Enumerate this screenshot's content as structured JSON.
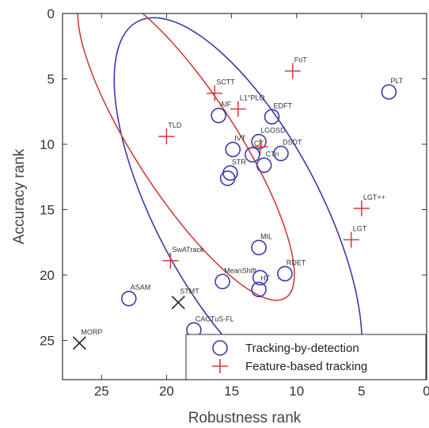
{
  "chart_data": {
    "type": "scatter",
    "xlabel": "Robustness rank",
    "ylabel": "Accuracy rank",
    "xlim": [
      28,
      0
    ],
    "ylim": [
      0,
      28
    ],
    "x_ticks": [
      25,
      20,
      15,
      10,
      5,
      0
    ],
    "y_ticks": [
      0,
      5,
      10,
      15,
      20,
      25
    ],
    "x_tick_labels": [
      "25",
      "20",
      "15",
      "10",
      "5",
      "0"
    ],
    "y_tick_labels": [
      "0",
      "5",
      "10",
      "15",
      "20",
      "25"
    ],
    "grid": false,
    "legend_position": "bottom-right",
    "series": [
      {
        "name": "Tracking-by-detection",
        "marker": "circle",
        "color": "#3a3aa8",
        "points": [
          {
            "label": "PLT",
            "x": 2.9,
            "y": 6.0
          },
          {
            "label": "AIF",
            "x": 16.0,
            "y": 7.8
          },
          {
            "label": "EDFT",
            "x": 11.9,
            "y": 7.9
          },
          {
            "label": "IVT",
            "x": 14.9,
            "y": 10.4
          },
          {
            "label": "LGOSD",
            "x": 12.9,
            "y": 9.8
          },
          {
            "label": "DSDT",
            "x": 11.2,
            "y": 10.7
          },
          {
            "label": "CT",
            "x": 13.4,
            "y": 10.8
          },
          {
            "label": "CTn",
            "x": 12.5,
            "y": 11.6
          },
          {
            "label": "STR",
            "x": 15.1,
            "y": 12.2
          },
          {
            "label": "",
            "x": 15.3,
            "y": 12.6
          },
          {
            "label": "MIL",
            "x": 12.9,
            "y": 17.9
          },
          {
            "label": "HT",
            "x": 12.9,
            "y": 21.1
          },
          {
            "label": "",
            "x": 12.8,
            "y": 20.2
          },
          {
            "label": "MeanShift",
            "x": 15.7,
            "y": 20.5
          },
          {
            "label": "RDET",
            "x": 10.9,
            "y": 19.9
          },
          {
            "label": "ASAM",
            "x": 22.9,
            "y": 21.8
          },
          {
            "label": "CACTuS-FL",
            "x": 17.9,
            "y": 24.2
          }
        ]
      },
      {
        "name": "Feature-based tracking",
        "marker": "plus",
        "color": "#d43a3a",
        "points": [
          {
            "label": "FoT",
            "x": 10.3,
            "y": 4.4
          },
          {
            "label": "SCTT",
            "x": 16.3,
            "y": 6.1
          },
          {
            "label": "L1°PLO",
            "x": 14.5,
            "y": 7.3
          },
          {
            "label": "TLD",
            "x": 20.0,
            "y": 9.4
          },
          {
            "label": "",
            "x": 12.8,
            "y": 10.2
          },
          {
            "label": "LGT++",
            "x": 5.0,
            "y": 14.9
          },
          {
            "label": "LGT",
            "x": 5.8,
            "y": 17.3
          },
          {
            "label": "SwATrack",
            "x": 19.7,
            "y": 18.9
          }
        ]
      },
      {
        "name": "",
        "marker": "x",
        "color": "#222222",
        "points": [
          {
            "label": "STMT",
            "x": 19.1,
            "y": 22.1
          },
          {
            "label": "MORP",
            "x": 26.7,
            "y": 25.2
          }
        ]
      }
    ],
    "ellipses": [
      {
        "color": "#3a3aa8",
        "center": [
          14.5,
          15.1
        ],
        "semi_axes": [
          6.3,
          16.4
        ],
        "angle_deg": -28
      },
      {
        "color": "#d43a3a",
        "center": [
          18.5,
          10.0
        ],
        "semi_axes": [
          3.9,
          14.0
        ],
        "angle_deg": -33
      }
    ]
  }
}
